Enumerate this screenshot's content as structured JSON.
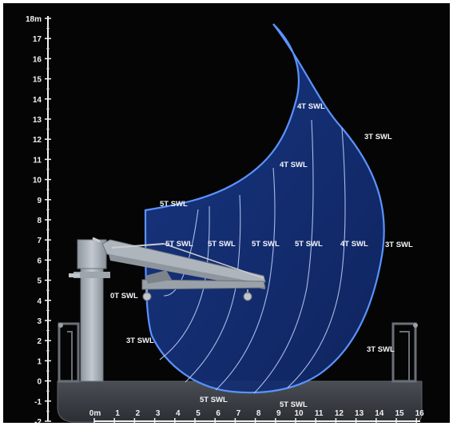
{
  "diagram": {
    "y_axis": {
      "unit": "m",
      "ticks": [
        "18m",
        "17",
        "16",
        "15",
        "14",
        "13",
        "12",
        "11",
        "10",
        "9",
        "8",
        "7",
        "6",
        "5",
        "4",
        "3",
        "2",
        "1",
        "0",
        "-1",
        "-2"
      ]
    },
    "x_axis": {
      "ticks": [
        "0m",
        "1",
        "2",
        "3",
        "4",
        "5",
        "6",
        "7",
        "8",
        "9",
        "10",
        "11",
        "12",
        "13",
        "14",
        "15",
        "16"
      ]
    },
    "swl_labels": [
      {
        "id": "swl-4t-top",
        "text": "4T SWL"
      },
      {
        "id": "swl-3t-upper",
        "text": "3T SWL"
      },
      {
        "id": "swl-4t-mid",
        "text": "4T SWL"
      },
      {
        "id": "swl-5t-left",
        "text": "5T SWL"
      },
      {
        "id": "swl-5t-row-1",
        "text": "5T SWL"
      },
      {
        "id": "swl-5t-row-2",
        "text": "5T SWL"
      },
      {
        "id": "swl-5t-row-3",
        "text": "5T SWL"
      },
      {
        "id": "swl-5t-row-4",
        "text": "5T SWL"
      },
      {
        "id": "swl-4t-row",
        "text": "4T SWL"
      },
      {
        "id": "swl-3t-row",
        "text": "3T SWL"
      },
      {
        "id": "swl-0t",
        "text": "0T SWL"
      },
      {
        "id": "swl-3t-lower-left",
        "text": "3T SWL"
      },
      {
        "id": "swl-3t-lower-right",
        "text": "3T SWL"
      },
      {
        "id": "swl-5t-bottom",
        "text": "5T SWL"
      },
      {
        "id": "swl-5t-bottom-right",
        "text": "5T SWL"
      }
    ],
    "colors": {
      "background": "#050505",
      "envelope_fill": "#15307a",
      "envelope_stroke": "#4f8cff",
      "grid_lines": "#b9ccf5",
      "hull": "#3a3d42",
      "crane": "#a9b0b8"
    }
  }
}
